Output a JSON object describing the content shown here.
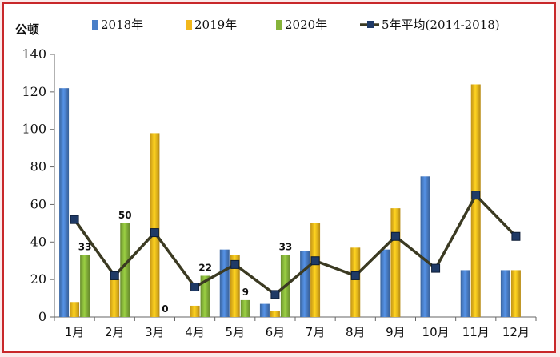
{
  "chart_data": {
    "type": "bar",
    "ylabel": "公顿",
    "ylim": [
      0,
      140
    ],
    "yticks": [
      0,
      20,
      40,
      60,
      80,
      100,
      120,
      140
    ],
    "grid": false,
    "legend_position": "top",
    "categories": [
      "1月",
      "2月",
      "3月",
      "4月",
      "5月",
      "6月",
      "7月",
      "8月",
      "9月",
      "10月",
      "11月",
      "12月"
    ],
    "series": [
      {
        "name": "2018年",
        "kind": "bar",
        "color": "#4a7fc8",
        "values": [
          122,
          0,
          0,
          0,
          36,
          7,
          35,
          0,
          36,
          75,
          25,
          25
        ]
      },
      {
        "name": "2019年",
        "kind": "bar",
        "color": "#f2b81c",
        "values": [
          8,
          20,
          98,
          6,
          33,
          3,
          50,
          37,
          58,
          null,
          124,
          25
        ]
      },
      {
        "name": "2020年",
        "kind": "bar",
        "color": "#86b43a",
        "values": [
          33,
          50,
          0,
          22,
          9,
          33,
          null,
          null,
          null,
          null,
          null,
          null
        ]
      },
      {
        "name": "5年平均(2014-2018)",
        "kind": "line",
        "color": "#3b3a22",
        "marker_color": "#1f3a66",
        "values": [
          52,
          22,
          45,
          16,
          28,
          12,
          30,
          22,
          43,
          26,
          65,
          43
        ]
      }
    ],
    "data_labels": [
      {
        "series": "2020年",
        "category": "1月",
        "text": "33"
      },
      {
        "series": "2020年",
        "category": "2月",
        "text": "50"
      },
      {
        "series": "2020年",
        "category": "3月",
        "text": "0"
      },
      {
        "series": "2020年",
        "category": "4月",
        "text": "22"
      },
      {
        "series": "2020年",
        "category": "5月",
        "text": "9"
      },
      {
        "series": "2020年",
        "category": "6月",
        "text": "33"
      }
    ]
  }
}
